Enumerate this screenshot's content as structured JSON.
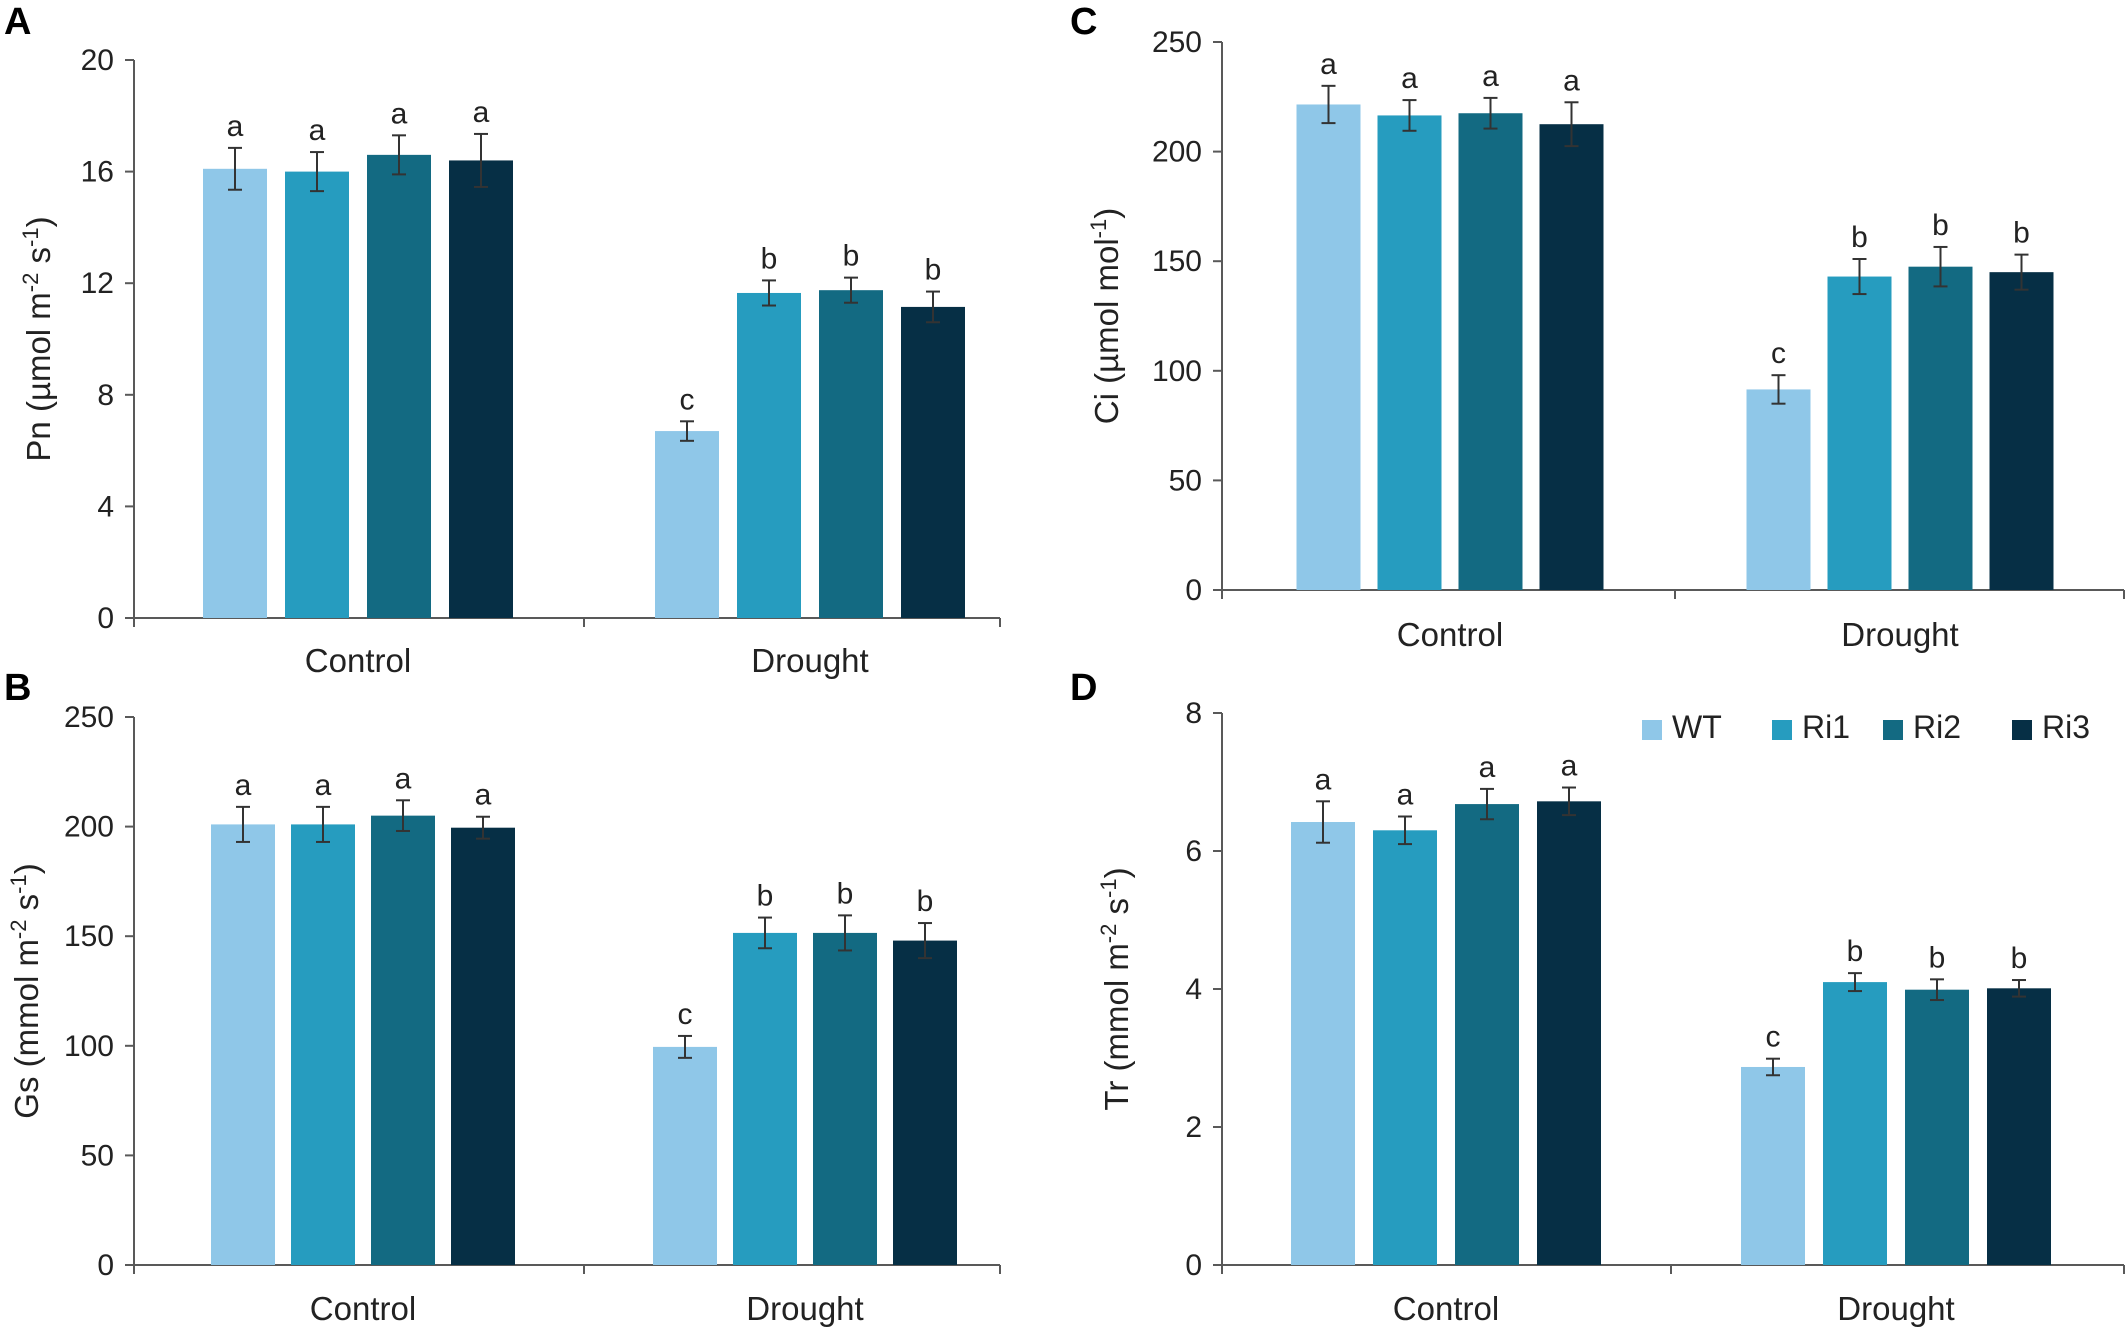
{
  "legend": {
    "placement": "top-right of panel D",
    "entries": [
      {
        "name": "WT",
        "color": "#8fc7e8"
      },
      {
        "name": "Ri1",
        "color": "#269cbf"
      },
      {
        "name": "Ri2",
        "color": "#136a82"
      },
      {
        "name": "Ri3",
        "color": "#062f45"
      }
    ]
  },
  "chart_data": [
    {
      "panel": "A",
      "type": "bar",
      "categories": [
        "Control",
        "Drought"
      ],
      "ylabel_main": "Pn (µmol m",
      "ylabel_sup1": "-2",
      "ylabel_mid": " s",
      "ylabel_sup2": "-1",
      "ylabel_end": ")",
      "ylim": [
        0,
        20
      ],
      "yticks": [
        0,
        4,
        8,
        12,
        16,
        20
      ],
      "grid": false,
      "series": [
        {
          "name": "WT",
          "values": [
            16.1,
            6.7
          ],
          "errors": [
            0.75,
            0.35
          ],
          "letters": [
            "a",
            "c"
          ]
        },
        {
          "name": "Ri1",
          "values": [
            16.0,
            11.65
          ],
          "errors": [
            0.7,
            0.45
          ],
          "letters": [
            "a",
            "b"
          ]
        },
        {
          "name": "Ri2",
          "values": [
            16.6,
            11.75
          ],
          "errors": [
            0.7,
            0.45
          ],
          "letters": [
            "a",
            "b"
          ]
        },
        {
          "name": "Ri3",
          "values": [
            16.4,
            11.15
          ],
          "errors": [
            0.95,
            0.55
          ],
          "letters": [
            "a",
            "b"
          ]
        }
      ]
    },
    {
      "panel": "B",
      "type": "bar",
      "categories": [
        "Control",
        "Drought"
      ],
      "ylabel_main": "Gs (mmol m",
      "ylabel_sup1": "-2",
      "ylabel_mid": " s",
      "ylabel_sup2": "-1",
      "ylabel_end": ")",
      "ylim": [
        0,
        250
      ],
      "yticks": [
        0,
        50,
        100,
        150,
        200,
        250
      ],
      "grid": false,
      "series": [
        {
          "name": "WT",
          "values": [
            201,
            99.5
          ],
          "errors": [
            8,
            5
          ],
          "letters": [
            "a",
            "c"
          ]
        },
        {
          "name": "Ri1",
          "values": [
            201,
            151.5
          ],
          "errors": [
            8,
            7
          ],
          "letters": [
            "a",
            "b"
          ]
        },
        {
          "name": "Ri2",
          "values": [
            205,
            151.5
          ],
          "errors": [
            7,
            8
          ],
          "letters": [
            "a",
            "b"
          ]
        },
        {
          "name": "Ri3",
          "values": [
            199.5,
            148
          ],
          "errors": [
            5,
            8
          ],
          "letters": [
            "a",
            "b"
          ]
        }
      ]
    },
    {
      "panel": "C",
      "type": "bar",
      "categories": [
        "Control",
        "Drought"
      ],
      "ylabel_main": "Ci (µmol mol",
      "ylabel_sup1": "-1",
      "ylabel_mid": "",
      "ylabel_sup2": "",
      "ylabel_end": ")",
      "ylim": [
        0,
        250
      ],
      "yticks": [
        0,
        50,
        100,
        150,
        200,
        250
      ],
      "grid": false,
      "series": [
        {
          "name": "WT",
          "values": [
            221.5,
            91.5
          ],
          "errors": [
            8.5,
            6.5
          ],
          "letters": [
            "a",
            "c"
          ]
        },
        {
          "name": "Ri1",
          "values": [
            216.5,
            143
          ],
          "errors": [
            7,
            8
          ],
          "letters": [
            "a",
            "b"
          ]
        },
        {
          "name": "Ri2",
          "values": [
            217.5,
            147.5
          ],
          "errors": [
            7,
            9
          ],
          "letters": [
            "a",
            "b"
          ]
        },
        {
          "name": "Ri3",
          "values": [
            212.5,
            145
          ],
          "errors": [
            10,
            8
          ],
          "letters": [
            "a",
            "b"
          ]
        }
      ]
    },
    {
      "panel": "D",
      "type": "bar",
      "categories": [
        "Control",
        "Drought"
      ],
      "ylabel_main": "Tr (mmol m",
      "ylabel_sup1": "-2",
      "ylabel_mid": " s",
      "ylabel_sup2": "-1",
      "ylabel_end": ")",
      "ylim": [
        0,
        8
      ],
      "yticks": [
        0,
        2,
        4,
        6,
        8
      ],
      "grid": false,
      "series": [
        {
          "name": "WT",
          "values": [
            6.42,
            2.87
          ],
          "errors": [
            0.3,
            0.12
          ],
          "letters": [
            "a",
            "c"
          ]
        },
        {
          "name": "Ri1",
          "values": [
            6.3,
            4.1
          ],
          "errors": [
            0.2,
            0.13
          ],
          "letters": [
            "a",
            "b"
          ]
        },
        {
          "name": "Ri2",
          "values": [
            6.68,
            3.99
          ],
          "errors": [
            0.22,
            0.15
          ],
          "letters": [
            "a",
            "b"
          ]
        },
        {
          "name": "Ri3",
          "values": [
            6.72,
            4.01
          ],
          "errors": [
            0.2,
            0.12
          ],
          "letters": [
            "a",
            "b"
          ]
        }
      ]
    }
  ]
}
